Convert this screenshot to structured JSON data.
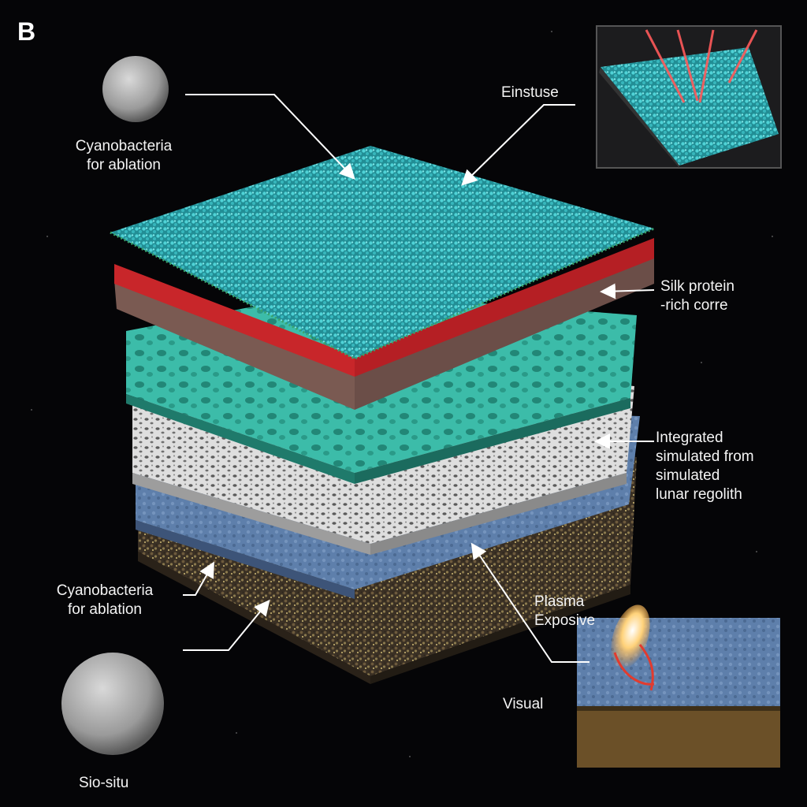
{
  "panel_letter": "B",
  "labels": {
    "cyano_top": "Cyanobacteria\nfor ablation",
    "einstuse": "Einstuse",
    "silk": "Silk protein\n-rich corre",
    "integrated": "Integrated\nsimulated from\nsimulated\nlunar regolith",
    "cyano_bottom": "Cyanobacteria\nfor ablation",
    "plasma": "Plasma\nExposive",
    "visual": "Visual",
    "sio_situ": "Sio-situ"
  },
  "colors": {
    "background": "#050507",
    "cyano_mat": "#2fb3b8",
    "red_band": "#c8262a",
    "teal_scaffold": "#3fbfae",
    "white_porous": "#d9d9d9",
    "blue_layer": "#5b7aa6",
    "regolith": "#4a3e2c",
    "leader_line": "#ffffff"
  }
}
